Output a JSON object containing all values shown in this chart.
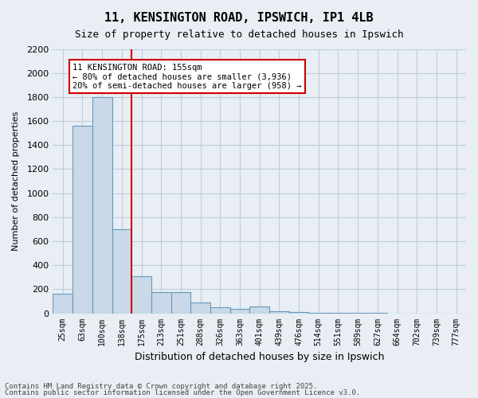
{
  "title1": "11, KENSINGTON ROAD, IPSWICH, IP1 4LB",
  "title2": "Size of property relative to detached houses in Ipswich",
  "xlabel": "Distribution of detached houses by size in Ipswich",
  "ylabel": "Number of detached properties",
  "categories": [
    "25sqm",
    "63sqm",
    "100sqm",
    "138sqm",
    "175sqm",
    "213sqm",
    "251sqm",
    "288sqm",
    "326sqm",
    "363sqm",
    "401sqm",
    "439sqm",
    "476sqm",
    "514sqm",
    "551sqm",
    "589sqm",
    "627sqm",
    "664sqm",
    "702sqm",
    "739sqm",
    "777sqm"
  ],
  "values": [
    160,
    1560,
    1800,
    700,
    310,
    175,
    175,
    90,
    50,
    35,
    55,
    20,
    10,
    5,
    2,
    1,
    1,
    0,
    0,
    0,
    0
  ],
  "bar_color": "#c9d9e8",
  "bar_edge_color": "#6699bb",
  "vline_x": 3.5,
  "vline_color": "#cc0000",
  "annotation_text": "11 KENSINGTON ROAD: 155sqm\n← 80% of detached houses are smaller (3,936)\n20% of semi-detached houses are larger (958) →",
  "annotation_box_color": "#cc0000",
  "ylim": [
    0,
    2200
  ],
  "yticks": [
    0,
    200,
    400,
    600,
    800,
    1000,
    1200,
    1400,
    1600,
    1800,
    2000,
    2200
  ],
  "grid_color": "#c0ccd8",
  "bg_color": "#e8eef4",
  "footer1": "Contains HM Land Registry data © Crown copyright and database right 2025.",
  "footer2": "Contains public sector information licensed under the Open Government Licence v3.0."
}
